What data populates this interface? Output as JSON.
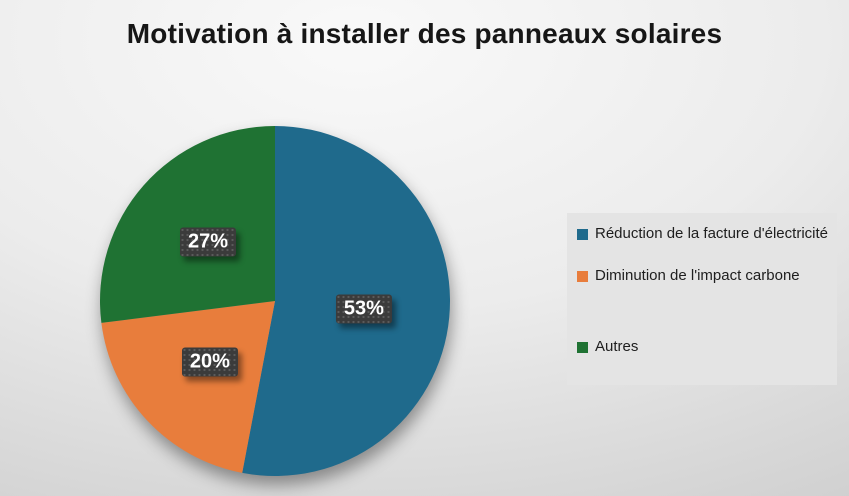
{
  "title": "Motivation à installer des panneaux solaires",
  "colors": {
    "slice_blue": "#1F6A8C",
    "slice_orange": "#E87D3C",
    "slice_green": "#1F7233",
    "label_chip_bg": "#3B3B3B",
    "label_chip_text": "#FFFFFF",
    "legend_box_bg": "#E4E4E4",
    "title_text": "#161616"
  },
  "chart_data": {
    "type": "pie",
    "title": "Motivation à installer des panneaux solaires",
    "categories": [
      "Réduction de la facture d'électricité",
      "Diminution de l'impact carbone",
      "Autres"
    ],
    "values": [
      53,
      20,
      27
    ],
    "data_labels": [
      "53%",
      "20%",
      "27%"
    ],
    "slice_colors": [
      "#1F6A8C",
      "#E87D3C",
      "#1F7233"
    ],
    "start_angle_deg": 0,
    "direction": "clockwise",
    "legend_position": "right",
    "data_label_style": "inside-dark-chip"
  },
  "legend": {
    "items": [
      {
        "label": "Réduction de la facture d'électricité",
        "color": "#1F6A8C"
      },
      {
        "label": "Diminution de l'impact carbone",
        "color": "#E87D3C"
      },
      {
        "label": "Autres",
        "color": "#1F7233"
      }
    ]
  }
}
